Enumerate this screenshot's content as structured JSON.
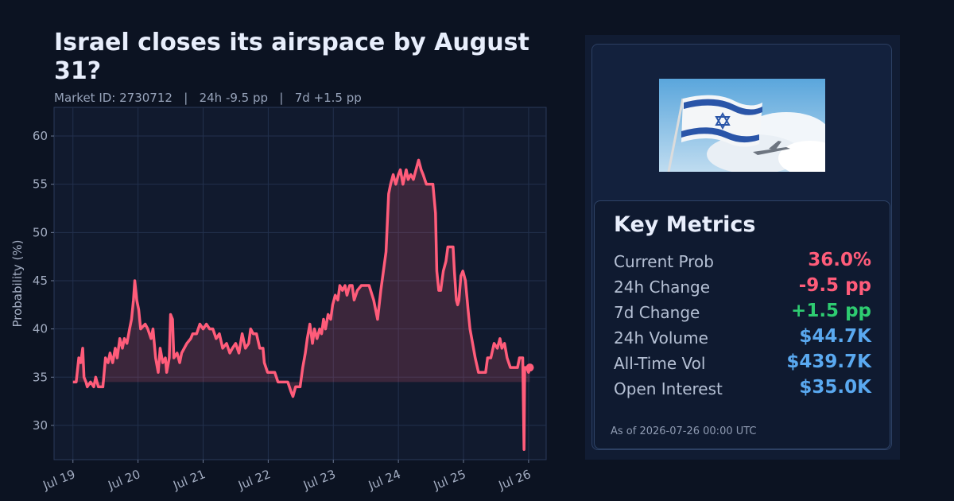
{
  "chart_data": {
    "type": "line",
    "title": "Israel closes its airspace by August 31?",
    "subtitle": "Market ID: 2730712   |   24h -9.5 pp   |   7d +1.5 pp",
    "y_label": "Probability (%)",
    "color": "#ff5c7a",
    "x": [
      0,
      0.05,
      0.09,
      0.12,
      0.15,
      0.17,
      0.2,
      0.22,
      0.27,
      0.32,
      0.35,
      0.39,
      0.46,
      0.5,
      0.54,
      0.57,
      0.61,
      0.65,
      0.68,
      0.72,
      0.76,
      0.79,
      0.83,
      0.87,
      0.9,
      0.93,
      0.95,
      0.98,
      1.01,
      1.04,
      1.11,
      1.15,
      1.2,
      1.23,
      1.27,
      1.31,
      1.34,
      1.38,
      1.42,
      1.44,
      1.48,
      1.5,
      1.53,
      1.55,
      1.6,
      1.64,
      1.67,
      1.71,
      1.75,
      1.81,
      1.84,
      1.9,
      1.95,
      2.0,
      2.05,
      2.1,
      2.15,
      2.2,
      2.25,
      2.3,
      2.36,
      2.41,
      2.45,
      2.5,
      2.55,
      2.6,
      2.65,
      2.7,
      2.73,
      2.77,
      2.82,
      2.87,
      2.92,
      2.94,
      2.99,
      3.04,
      3.1,
      3.15,
      3.24,
      3.3,
      3.35,
      3.38,
      3.42,
      3.49,
      3.53,
      3.57,
      3.6,
      3.64,
      3.68,
      3.71,
      3.75,
      3.79,
      3.82,
      3.85,
      3.88,
      3.92,
      3.96,
      3.99,
      4.03,
      4.07,
      4.1,
      4.14,
      4.18,
      4.21,
      4.25,
      4.29,
      4.32,
      4.37,
      4.43,
      4.49,
      4.55,
      4.62,
      4.68,
      4.73,
      4.77,
      4.81,
      4.85,
      4.88,
      4.92,
      4.96,
      5.0,
      5.03,
      5.07,
      5.12,
      5.15,
      5.19,
      5.23,
      5.27,
      5.31,
      5.35,
      5.38,
      5.43,
      5.48,
      5.53,
      5.57,
      5.59,
      5.62,
      5.65,
      5.69,
      5.73,
      5.76,
      5.8,
      5.84,
      5.86,
      5.89,
      5.91,
      5.93,
      5.96,
      5.99,
      6.03,
      6.07,
      6.1,
      6.14,
      6.18,
      6.23,
      6.28,
      6.34,
      6.37,
      6.42,
      6.47,
      6.52,
      6.56,
      6.59,
      6.63,
      6.67,
      6.72,
      6.76,
      6.83,
      6.86,
      6.91,
      6.93,
      6.94,
      6.97,
      7.0,
      7.02
    ],
    "values": [
      34.5,
      34.5,
      37,
      36.5,
      38,
      35,
      34.5,
      34,
      34.5,
      34,
      35,
      34,
      34,
      37,
      36.5,
      37.5,
      36.5,
      38,
      37,
      39,
      38,
      39,
      38.5,
      40,
      41,
      43,
      45,
      43,
      42,
      40,
      40.5,
      40,
      39,
      40,
      37,
      35.5,
      38,
      36.5,
      37,
      35.5,
      37,
      41.5,
      41,
      37,
      37.5,
      36.5,
      37.5,
      38,
      38.5,
      39,
      39.5,
      39.5,
      40.5,
      40,
      40.5,
      40,
      40,
      39,
      39.5,
      38,
      38.5,
      37.5,
      38,
      38.5,
      37.5,
      39.5,
      38,
      38.5,
      40,
      39.5,
      39.5,
      38,
      38,
      36.5,
      35.5,
      35.5,
      35.5,
      34.5,
      34.5,
      34.5,
      33.5,
      33,
      34,
      34,
      36,
      37.5,
      39,
      40.5,
      38.5,
      40,
      39,
      40,
      39.5,
      41,
      40,
      41.5,
      41,
      42.5,
      43.5,
      43,
      44.5,
      44,
      44.5,
      43.5,
      44.5,
      44.5,
      43,
      44,
      44.5,
      44.5,
      44.5,
      43,
      41,
      44,
      46,
      48,
      54,
      55,
      56,
      55,
      56,
      56.5,
      55,
      56.5,
      55.5,
      56,
      55.5,
      56.5,
      57.5,
      56.5,
      56,
      55,
      55,
      55,
      52,
      46,
      44,
      44,
      46,
      47,
      48.5,
      48.5,
      48.5,
      46,
      43,
      42.5,
      43,
      45.5,
      46,
      45,
      42,
      40,
      38.5,
      37,
      35.5,
      35.5,
      35.5,
      37,
      37,
      38.5,
      38,
      39,
      38,
      38.5,
      37,
      36,
      36,
      36,
      37,
      37,
      27.5,
      36,
      36,
      35.5,
      36
    ],
    "xlim": [
      -0.29,
      7.27
    ],
    "xticks": [
      {
        "value": 0,
        "label": "Jul 19"
      },
      {
        "value": 1,
        "label": "Jul 20"
      },
      {
        "value": 2,
        "label": "Jul 21"
      },
      {
        "value": 3,
        "label": "Jul 22"
      },
      {
        "value": 4,
        "label": "Jul 23"
      },
      {
        "value": 5,
        "label": "Jul 24"
      },
      {
        "value": 6,
        "label": "Jul 25"
      },
      {
        "value": 7,
        "label": "Jul 26"
      }
    ],
    "ylim": [
      26.45,
      62.97
    ],
    "yticks": [
      30,
      35,
      40,
      45,
      50,
      55,
      60
    ],
    "grid": true
  },
  "metrics": {
    "title": "Key Metrics",
    "rows": [
      {
        "label": "Current Prob",
        "value": "36.0%",
        "color": "#ff5c7a"
      },
      {
        "label": "24h Change",
        "value": "-9.5 pp",
        "color": "#ff5c7a"
      },
      {
        "label": "7d Change",
        "value": "+1.5 pp",
        "color": "#2ecc71"
      },
      {
        "label": "24h Volume",
        "value": "$44.7K",
        "color": "#5aa9f0"
      },
      {
        "label": "All-Time Vol",
        "value": "$439.7K",
        "color": "#5aa9f0"
      },
      {
        "label": "Open Interest",
        "value": "$35.0K",
        "color": "#5aa9f0"
      }
    ],
    "as_of": "As of 2026-07-26 00:00 UTC"
  }
}
